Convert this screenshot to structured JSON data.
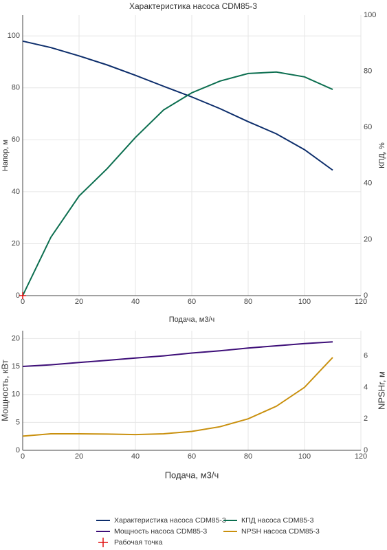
{
  "chart_data": [
    {
      "type": "line",
      "title": "Характеристика насоса CDM85-3",
      "x_label": "Подача, м3/ч",
      "y_label": "Напор, м",
      "y2_label": "КПД, %",
      "x": [
        0,
        10,
        20,
        30,
        40,
        50,
        60,
        70,
        80,
        90,
        100,
        110
      ],
      "xlim": [
        0,
        120
      ],
      "xticks": [
        0,
        20,
        40,
        60,
        80,
        100,
        120
      ],
      "ylim": [
        0,
        108
      ],
      "yticks": [
        0,
        20,
        40,
        60,
        80,
        100
      ],
      "y2lim": [
        0,
        100
      ],
      "y2ticks": [
        0,
        20,
        40,
        60,
        80,
        100
      ],
      "grid": true,
      "series": [
        {
          "name": "Характеристика насоса CDM85-3",
          "color": "#0c2d6b",
          "values": [
            98,
            95.5,
            92.3,
            88.8,
            84.8,
            80.6,
            76.5,
            72,
            67,
            62.3,
            56.2,
            48.3
          ]
        },
        {
          "name": "КПД насоса CDM85-3",
          "color": "#0b6e4f",
          "axis": "y2",
          "values": [
            0,
            20.8,
            35.5,
            45.3,
            56.4,
            66.2,
            72.3,
            76.5,
            79.2,
            79.7,
            78,
            73.5
          ]
        },
        {
          "name": "Рабочая точка",
          "color": "#e01010",
          "marker": "cross",
          "x": [
            0
          ],
          "values": [
            0
          ]
        }
      ]
    },
    {
      "type": "line",
      "x_label": "Подача, м3/ч",
      "y_label": "Мощность, кВт",
      "y2_label": "NPSHr, м",
      "x": [
        0,
        10,
        20,
        30,
        40,
        50,
        60,
        70,
        80,
        90,
        100,
        110
      ],
      "xlim": [
        0,
        120
      ],
      "xticks": [
        0,
        20,
        40,
        60,
        80,
        100,
        120
      ],
      "ylim": [
        0,
        21.4
      ],
      "yticks": [
        0,
        5,
        10,
        15,
        20
      ],
      "y2lim": [
        0,
        7.6
      ],
      "y2ticks": [
        0,
        2,
        4,
        6
      ],
      "grid": true,
      "series": [
        {
          "name": "Мощность насоса CDM85-3",
          "color": "#3d0e78",
          "values": [
            15,
            15.3,
            15.7,
            16.1,
            16.5,
            16.9,
            17.4,
            17.8,
            18.3,
            18.7,
            19.1,
            19.4
          ]
        },
        {
          "name": "NPSH насоса CDM85-3",
          "color": "#c9900e",
          "axis": "y2",
          "values": [
            0.9,
            1.05,
            1.05,
            1.03,
            1.0,
            1.05,
            1.2,
            1.5,
            2.0,
            2.8,
            4.0,
            5.9
          ]
        }
      ]
    }
  ]
}
